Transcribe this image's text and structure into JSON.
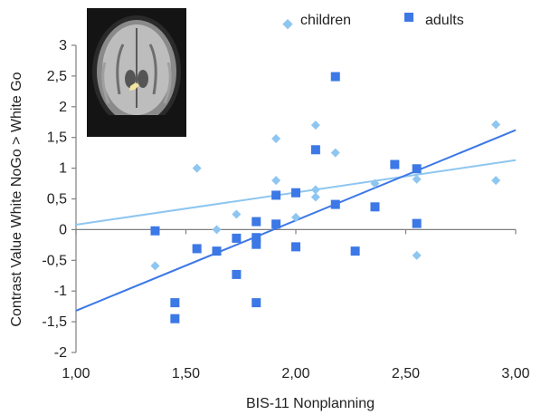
{
  "chart_data": {
    "type": "scatter",
    "xlabel": "BIS-11 Nonplanning",
    "ylabel": "Contrast Value White NoGo > White Go",
    "xlim": [
      1.0,
      3.0
    ],
    "ylim": [
      -2.0,
      3.0
    ],
    "x_ticks": [
      1.0,
      1.5,
      2.0,
      2.5,
      3.0
    ],
    "x_tick_labels": [
      "1,00",
      "1,50",
      "2,00",
      "2,50",
      "3,00"
    ],
    "y_ticks": [
      -2,
      -1.5,
      -1,
      -0.5,
      0,
      0.5,
      1,
      1.5,
      2,
      2.5,
      3
    ],
    "y_tick_labels": [
      "-2",
      "-1,5",
      "-1",
      "-0,5",
      "0",
      "0,5",
      "1",
      "1,5",
      "2",
      "2,5",
      "3"
    ],
    "grid": false,
    "legend_position": "top-right",
    "series": [
      {
        "name": "children",
        "marker": "diamond",
        "color": "#8ec6f0",
        "points": [
          {
            "x": 1.36,
            "y": -0.59
          },
          {
            "x": 1.55,
            "y": 1.0
          },
          {
            "x": 1.64,
            "y": 0.0
          },
          {
            "x": 1.73,
            "y": 0.25
          },
          {
            "x": 1.91,
            "y": 1.48
          },
          {
            "x": 1.91,
            "y": 0.8
          },
          {
            "x": 2.0,
            "y": 0.2
          },
          {
            "x": 2.09,
            "y": 1.7
          },
          {
            "x": 2.09,
            "y": 0.65
          },
          {
            "x": 2.09,
            "y": 0.53
          },
          {
            "x": 2.18,
            "y": 1.25
          },
          {
            "x": 2.36,
            "y": 0.75
          },
          {
            "x": 2.55,
            "y": 0.82
          },
          {
            "x": 2.55,
            "y": -0.42
          },
          {
            "x": 2.91,
            "y": 1.71
          },
          {
            "x": 2.91,
            "y": 0.8
          }
        ],
        "trend": {
          "x": [
            1.0,
            3.0
          ],
          "y": [
            0.08,
            1.13
          ]
        }
      },
      {
        "name": "adults",
        "marker": "square",
        "color": "#3c78e6",
        "points": [
          {
            "x": 1.36,
            "y": -0.02
          },
          {
            "x": 1.45,
            "y": -1.19
          },
          {
            "x": 1.45,
            "y": -1.45
          },
          {
            "x": 1.55,
            "y": -0.31
          },
          {
            "x": 1.64,
            "y": -0.35
          },
          {
            "x": 1.73,
            "y": -0.73
          },
          {
            "x": 1.73,
            "y": -0.14
          },
          {
            "x": 1.82,
            "y": 0.13
          },
          {
            "x": 1.82,
            "y": -0.13
          },
          {
            "x": 1.82,
            "y": -0.24
          },
          {
            "x": 1.82,
            "y": -1.19
          },
          {
            "x": 1.91,
            "y": 0.56
          },
          {
            "x": 1.91,
            "y": 0.09
          },
          {
            "x": 2.0,
            "y": 0.6
          },
          {
            "x": 2.0,
            "y": -0.28
          },
          {
            "x": 2.09,
            "y": 1.3
          },
          {
            "x": 2.18,
            "y": 2.49
          },
          {
            "x": 2.18,
            "y": 0.41
          },
          {
            "x": 2.27,
            "y": -0.35
          },
          {
            "x": 2.36,
            "y": 0.37
          },
          {
            "x": 2.45,
            "y": 1.06
          },
          {
            "x": 2.55,
            "y": 0.99
          },
          {
            "x": 2.55,
            "y": 0.1
          }
        ],
        "trend": {
          "x": [
            1.0,
            3.0
          ],
          "y": [
            -1.32,
            1.62
          ]
        }
      }
    ],
    "inset": "brain-scan-image",
    "colors": {
      "axis": "#7f7f7f",
      "text": "#222222",
      "scan_bg": "#1a1a1a",
      "scan_highlight": "#f3e6a0"
    }
  }
}
